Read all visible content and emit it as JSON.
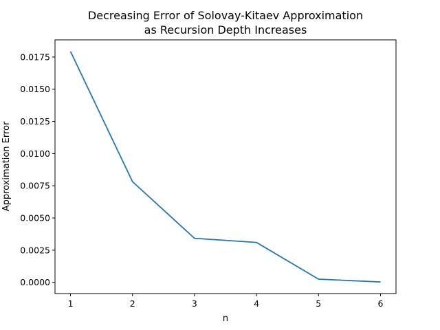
{
  "chart_data": {
    "type": "line",
    "title_lines": [
      "Decreasing Error of Solovay-Kitaev Approximation",
      "as Recursion Depth Increases"
    ],
    "xlabel": "n",
    "ylabel": "Approximation Error",
    "x": [
      1,
      2,
      3,
      4,
      5,
      6
    ],
    "series": [
      {
        "values": [
          0.01793,
          0.00782,
          0.00342,
          0.0031,
          0.00025,
          3e-05
        ],
        "color": "#1f77b4"
      }
    ],
    "xlim": [
      0.75,
      6.25
    ],
    "ylim": [
      -0.00087,
      0.01883
    ],
    "x_ticks": [
      1,
      2,
      3,
      4,
      5,
      6
    ],
    "x_tick_labels": [
      "1",
      "2",
      "3",
      "4",
      "5",
      "6"
    ],
    "y_ticks": [
      0.0,
      0.0025,
      0.005,
      0.0075,
      0.01,
      0.0125,
      0.015,
      0.0175
    ],
    "y_tick_labels": [
      "0.0000",
      "0.0025",
      "0.0050",
      "0.0075",
      "0.0100",
      "0.0125",
      "0.0150",
      "0.0175"
    ],
    "grid": false,
    "legend": "none"
  }
}
